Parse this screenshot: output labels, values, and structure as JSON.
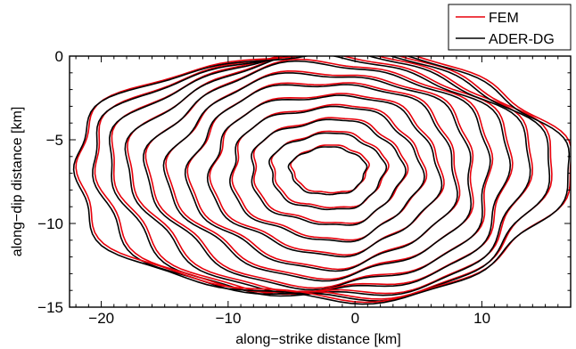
{
  "chart_data": {
    "type": "line",
    "title": "",
    "xlabel": "along−strike distance [km]",
    "ylabel": "along−dip distance [km]",
    "xlim": [
      -22.5,
      17
    ],
    "ylim": [
      -15,
      0
    ],
    "xticks": [
      -20,
      -10,
      0,
      10
    ],
    "xtick_labels": [
      "−20",
      "−10",
      "0",
      "10"
    ],
    "yticks": [
      0,
      -5,
      -10,
      -15
    ],
    "ytick_labels": [
      "0",
      "−5",
      "−10",
      "−15"
    ],
    "legend_position": "top-right, outside plot",
    "grid": false,
    "colors": {
      "FEM": "#e8000b",
      "ADER-DG": "#000000"
    },
    "series": [
      {
        "name": "FEM",
        "color": "#e8000b"
      },
      {
        "name": "ADER-DG",
        "color": "#000000"
      }
    ],
    "contour_center": [
      -2,
      -6.8
    ],
    "contour_radii": [
      [
        3,
        1.5
      ],
      [
        4.5,
        2.4
      ],
      [
        6,
        3.3
      ],
      [
        7.5,
        4.2
      ],
      [
        9,
        5
      ],
      [
        10.5,
        5.8
      ],
      [
        12,
        6.4
      ],
      [
        13.5,
        7
      ],
      [
        15,
        7.4
      ],
      [
        16.5,
        7.7
      ],
      [
        18,
        7.8
      ],
      [
        19.5,
        7.8
      ]
    ]
  }
}
